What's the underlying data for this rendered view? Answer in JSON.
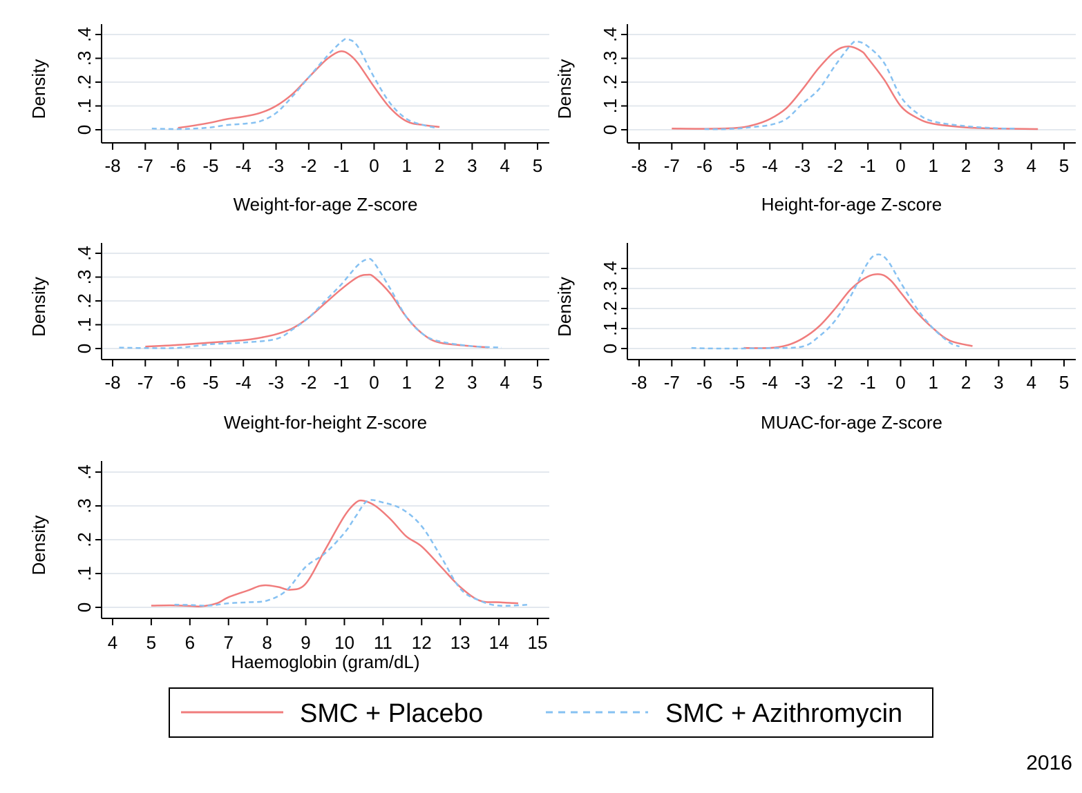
{
  "colors": {
    "placebo": "#f07c7c",
    "azithromycin": "#86c1f2",
    "grid": "#e3e8ee",
    "axis": "#000000"
  },
  "legend": {
    "placement": "bottom-center",
    "entries": [
      {
        "label": "SMC + Placebo",
        "style": "solid",
        "color": "#f07c7c"
      },
      {
        "label": "SMC + Azithromycin",
        "style": "dashed",
        "color": "#86c1f2"
      }
    ]
  },
  "year_label": "2016",
  "chart_data": [
    {
      "type": "line",
      "xlabel": "Weight-for-age Z-score",
      "ylabel": "Density",
      "xlim": [
        -8,
        5
      ],
      "ylim": [
        0,
        0.4
      ],
      "xticks": [
        -8,
        -7,
        -6,
        -5,
        -4,
        -3,
        -2,
        -1,
        0,
        1,
        2,
        3,
        4,
        5
      ],
      "xtick_labels": [
        "-8",
        "-7",
        "-6",
        "-5",
        "-4",
        "-3",
        "-2",
        "-1",
        "0",
        "1",
        "2",
        "3",
        "4",
        "5"
      ],
      "yticks": [
        0,
        0.1,
        0.2,
        0.3,
        0.4
      ],
      "ytick_labels": [
        "0",
        ".1",
        ".2",
        ".3",
        ".4"
      ],
      "grid": true,
      "series": [
        {
          "name": "SMC + Placebo",
          "style": "solid",
          "x": [
            -6,
            -5.5,
            -5,
            -4.5,
            -4,
            -3.5,
            -3,
            -2.5,
            -2,
            -1.5,
            -1.2,
            -1,
            -0.8,
            -0.5,
            0,
            0.5,
            1,
            1.5,
            2
          ],
          "y": [
            0.008,
            0.018,
            0.03,
            0.045,
            0.055,
            0.07,
            0.1,
            0.15,
            0.22,
            0.29,
            0.32,
            0.33,
            0.32,
            0.28,
            0.18,
            0.09,
            0.035,
            0.02,
            0.012
          ]
        },
        {
          "name": "SMC + Azithromycin",
          "style": "dashed",
          "x": [
            -6.8,
            -6,
            -5.5,
            -5,
            -4.5,
            -4,
            -3.5,
            -3,
            -2.5,
            -2,
            -1.5,
            -1,
            -0.8,
            -0.5,
            0,
            0.5,
            1,
            1.5,
            1.9
          ],
          "y": [
            0.005,
            0.003,
            0.005,
            0.01,
            0.02,
            0.025,
            0.035,
            0.07,
            0.14,
            0.22,
            0.3,
            0.37,
            0.38,
            0.35,
            0.22,
            0.11,
            0.045,
            0.02,
            0.008
          ]
        }
      ]
    },
    {
      "type": "line",
      "xlabel": "Height-for-age Z-score",
      "ylabel": "Density",
      "xlim": [
        -8,
        5
      ],
      "ylim": [
        0,
        0.4
      ],
      "xticks": [
        -8,
        -7,
        -6,
        -5,
        -4,
        -3,
        -2,
        -1,
        0,
        1,
        2,
        3,
        4,
        5
      ],
      "xtick_labels": [
        "-8",
        "-7",
        "-6",
        "-5",
        "-4",
        "-3",
        "-2",
        "-1",
        "0",
        "1",
        "2",
        "3",
        "4",
        "5"
      ],
      "yticks": [
        0,
        0.1,
        0.2,
        0.3,
        0.4
      ],
      "ytick_labels": [
        "0",
        ".1",
        ".2",
        ".3",
        ".4"
      ],
      "grid": true,
      "series": [
        {
          "name": "SMC + Placebo",
          "style": "solid",
          "x": [
            -7,
            -6,
            -5,
            -4.5,
            -4,
            -3.5,
            -3,
            -2.5,
            -2,
            -1.6,
            -1.2,
            -1,
            -0.5,
            0,
            0.5,
            1,
            2,
            3,
            4.2
          ],
          "y": [
            0.005,
            0.004,
            0.008,
            0.02,
            0.045,
            0.09,
            0.17,
            0.26,
            0.33,
            0.35,
            0.33,
            0.3,
            0.21,
            0.1,
            0.05,
            0.025,
            0.01,
            0.005,
            0.003
          ]
        },
        {
          "name": "SMC + Azithromycin",
          "style": "dashed",
          "x": [
            -6,
            -5.5,
            -5,
            -4.5,
            -4,
            -3.5,
            -3,
            -2.5,
            -2,
            -1.5,
            -1.3,
            -1,
            -0.5,
            0,
            0.5,
            1,
            2,
            3,
            3.5
          ],
          "y": [
            0.003,
            0.002,
            0.005,
            0.012,
            0.02,
            0.045,
            0.11,
            0.17,
            0.27,
            0.36,
            0.37,
            0.35,
            0.28,
            0.14,
            0.07,
            0.035,
            0.015,
            0.006,
            0.005
          ]
        }
      ]
    },
    {
      "type": "line",
      "xlabel": "Weight-for-height Z-score",
      "ylabel": "Density",
      "xlim": [
        -8,
        5
      ],
      "ylim": [
        0,
        0.4
      ],
      "xticks": [
        -8,
        -7,
        -6,
        -5,
        -4,
        -3,
        -2,
        -1,
        0,
        1,
        2,
        3,
        4,
        5
      ],
      "xtick_labels": [
        "-8",
        "-7",
        "-6",
        "-5",
        "-4",
        "-3",
        "-2",
        "-1",
        "0",
        "1",
        "2",
        "3",
        "4",
        "5"
      ],
      "yticks": [
        0,
        0.1,
        0.2,
        0.3,
        0.4
      ],
      "ytick_labels": [
        "0",
        ".1",
        ".2",
        ".3",
        ".4"
      ],
      "grid": true,
      "series": [
        {
          "name": "SMC + Placebo",
          "style": "solid",
          "x": [
            -7,
            -6,
            -5,
            -4,
            -3.5,
            -3,
            -2.5,
            -2,
            -1.5,
            -1,
            -0.5,
            -0.2,
            0,
            0.5,
            1,
            1.5,
            2,
            3,
            3.5
          ],
          "y": [
            0.008,
            0.015,
            0.025,
            0.035,
            0.045,
            0.06,
            0.085,
            0.13,
            0.19,
            0.25,
            0.3,
            0.31,
            0.3,
            0.23,
            0.13,
            0.06,
            0.025,
            0.01,
            0.005
          ]
        },
        {
          "name": "SMC + Azithromycin",
          "style": "dashed",
          "x": [
            -7.8,
            -7,
            -6,
            -5,
            -4,
            -3,
            -2.5,
            -2,
            -1.5,
            -1,
            -0.5,
            -0.2,
            0,
            0.5,
            1,
            1.5,
            2,
            3,
            3.9
          ],
          "y": [
            0.004,
            0.002,
            0.003,
            0.018,
            0.025,
            0.04,
            0.08,
            0.13,
            0.2,
            0.27,
            0.35,
            0.375,
            0.36,
            0.25,
            0.13,
            0.06,
            0.03,
            0.01,
            0.004
          ]
        }
      ]
    },
    {
      "type": "line",
      "xlabel": "MUAC-for-age Z-score",
      "ylabel": "Density",
      "xlim": [
        -8,
        5
      ],
      "ylim": [
        0,
        0.5
      ],
      "xticks": [
        -8,
        -7,
        -6,
        -5,
        -4,
        -3,
        -2,
        -1,
        0,
        1,
        2,
        3,
        4,
        5
      ],
      "xtick_labels": [
        "-8",
        "-7",
        "-6",
        "-5",
        "-4",
        "-3",
        "-2",
        "-1",
        "0",
        "1",
        "2",
        "3",
        "4",
        "5"
      ],
      "yticks": [
        0,
        0.1,
        0.2,
        0.3,
        0.4
      ],
      "ytick_labels": [
        "0",
        ".1",
        ".2",
        ".3",
        ".4"
      ],
      "grid": true,
      "series": [
        {
          "name": "SMC + Placebo",
          "style": "solid",
          "x": [
            -4.8,
            -4,
            -3.5,
            -3,
            -2.5,
            -2,
            -1.5,
            -1,
            -0.6,
            -0.3,
            0,
            0.5,
            1,
            1.5,
            2.2
          ],
          "y": [
            0.003,
            0.003,
            0.015,
            0.05,
            0.11,
            0.2,
            0.3,
            0.36,
            0.37,
            0.34,
            0.28,
            0.18,
            0.1,
            0.04,
            0.012
          ]
        },
        {
          "name": "SMC + Azithromycin",
          "style": "dashed",
          "x": [
            -6.4,
            -6,
            -5.5,
            -5,
            -4.5,
            -4,
            -3,
            -2.5,
            -2,
            -1.5,
            -1,
            -0.7,
            -0.4,
            0,
            0.5,
            1,
            1.5,
            1.8
          ],
          "y": [
            0.003,
            0.001,
            0.0,
            0.0,
            0.001,
            0.002,
            0.01,
            0.06,
            0.14,
            0.27,
            0.43,
            0.47,
            0.44,
            0.33,
            0.2,
            0.1,
            0.03,
            0.01
          ]
        }
      ]
    },
    {
      "type": "line",
      "xlabel": "Haemoglobin (gram/dL)",
      "ylabel": "Density",
      "xlim": [
        4,
        15
      ],
      "ylim": [
        0,
        0.4
      ],
      "xticks": [
        4,
        5,
        6,
        7,
        8,
        9,
        10,
        11,
        12,
        13,
        14,
        15
      ],
      "xtick_labels": [
        "4",
        "5",
        "6",
        "7",
        "8",
        "9",
        "10",
        "11",
        "12",
        "13",
        "14",
        "15"
      ],
      "yticks": [
        0,
        0.1,
        0.2,
        0.3,
        0.4
      ],
      "ytick_labels": [
        "0",
        ".1",
        ".2",
        ".3",
        ".4"
      ],
      "grid": true,
      "series": [
        {
          "name": "SMC + Placebo",
          "style": "solid",
          "x": [
            5,
            5.5,
            6,
            6.3,
            6.7,
            7,
            7.5,
            7.8,
            8,
            8.3,
            8.6,
            9,
            9.5,
            10,
            10.3,
            10.5,
            10.8,
            11.2,
            11.6,
            12,
            12.5,
            13,
            13.5,
            14,
            14.5
          ],
          "y": [
            0.005,
            0.006,
            0.004,
            0.003,
            0.012,
            0.03,
            0.05,
            0.063,
            0.065,
            0.06,
            0.052,
            0.07,
            0.17,
            0.27,
            0.31,
            0.315,
            0.3,
            0.26,
            0.21,
            0.18,
            0.12,
            0.06,
            0.02,
            0.015,
            0.012
          ]
        },
        {
          "name": "SMC + Azithromycin",
          "style": "dashed",
          "x": [
            5.6,
            6,
            6.5,
            7,
            7.5,
            8,
            8.5,
            9,
            9.5,
            10,
            10.3,
            10.6,
            11,
            11.5,
            12,
            12.5,
            13,
            13.5,
            14,
            14.8
          ],
          "y": [
            0.008,
            0.007,
            0.005,
            0.012,
            0.015,
            0.02,
            0.05,
            0.12,
            0.16,
            0.22,
            0.27,
            0.315,
            0.31,
            0.29,
            0.24,
            0.15,
            0.055,
            0.02,
            0.005,
            0.008
          ]
        }
      ]
    }
  ]
}
